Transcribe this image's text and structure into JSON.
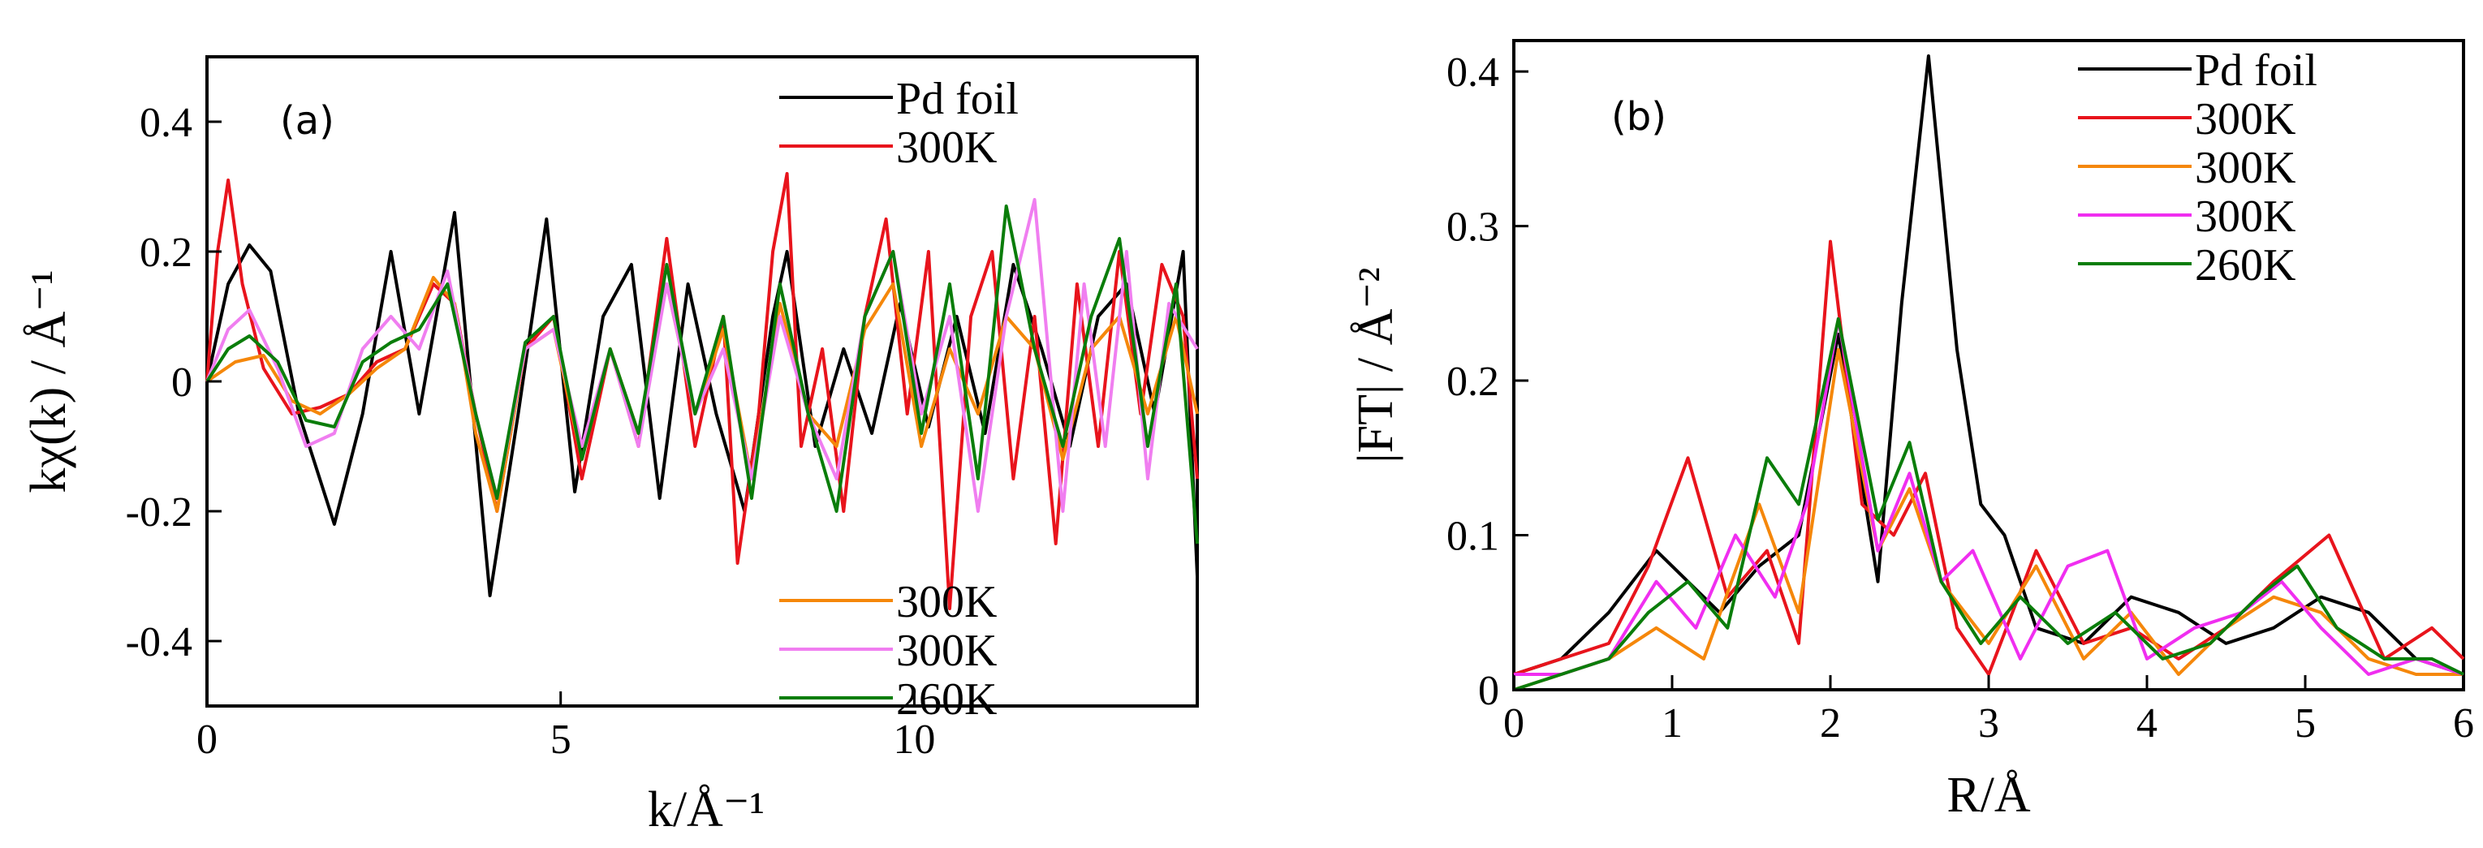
{
  "chart_data": [
    {
      "panel": "(a)",
      "type": "line",
      "xlabel": "k/Å⁻¹",
      "ylabel": "kχ(k) / Å⁻¹",
      "xlim": [
        0,
        14
      ],
      "ylim": [
        -0.5,
        0.5
      ],
      "xticks": [
        "0",
        "5",
        "10"
      ],
      "xtick_values": [
        0,
        5,
        10
      ],
      "yticks": [
        "0.4",
        "0.2",
        "0",
        "-0.2",
        "-0.4"
      ],
      "ytick_values": [
        0.4,
        0.2,
        0,
        -0.2,
        -0.4
      ],
      "legend_top": [
        "Pd foil",
        "300K"
      ],
      "legend_bottom": [
        "300K",
        "300K",
        "260K"
      ],
      "series": [
        {
          "name": "Pd foil",
          "color": "#000000",
          "x": [
            0,
            0.3,
            0.6,
            0.9,
            1.3,
            1.8,
            2.2,
            2.6,
            3.0,
            3.5,
            4.0,
            4.4,
            4.8,
            5.2,
            5.6,
            6.0,
            6.4,
            6.8,
            7.2,
            7.6,
            8.0,
            8.2,
            8.6,
            9.0,
            9.4,
            9.8,
            10.2,
            10.6,
            11.0,
            11.4,
            11.8,
            12.2,
            12.6,
            13.0,
            13.4,
            13.8,
            14.0
          ],
          "y": [
            0,
            0.15,
            0.21,
            0.17,
            -0.05,
            -0.22,
            -0.05,
            0.2,
            -0.05,
            0.26,
            -0.33,
            -0.05,
            0.25,
            -0.17,
            0.1,
            0.18,
            -0.18,
            0.15,
            -0.05,
            -0.2,
            0.1,
            0.2,
            -0.1,
            0.05,
            -0.08,
            0.12,
            -0.07,
            0.1,
            -0.08,
            0.18,
            0.05,
            -0.1,
            0.1,
            0.15,
            -0.05,
            0.2,
            -0.3
          ]
        },
        {
          "name": "300K",
          "color": "#e8141c",
          "x": [
            0,
            0.15,
            0.3,
            0.5,
            0.8,
            1.2,
            1.6,
            2.0,
            2.4,
            2.8,
            3.2,
            3.5,
            3.8,
            4.1,
            4.5,
            4.9,
            5.3,
            5.7,
            6.1,
            6.5,
            6.9,
            7.3,
            7.5,
            7.8,
            8.0,
            8.2,
            8.4,
            8.7,
            9.0,
            9.3,
            9.6,
            9.9,
            10.2,
            10.5,
            10.8,
            11.1,
            11.4,
            11.7,
            12.0,
            12.3,
            12.6,
            12.9,
            13.2,
            13.5,
            13.8,
            14.0
          ],
          "y": [
            0,
            0.2,
            0.31,
            0.15,
            0.02,
            -0.05,
            -0.04,
            -0.02,
            0.03,
            0.05,
            0.15,
            0.12,
            -0.05,
            -0.2,
            0.05,
            0.1,
            -0.15,
            0.05,
            -0.1,
            0.22,
            -0.1,
            0.1,
            -0.28,
            -0.05,
            0.2,
            0.32,
            -0.1,
            0.05,
            -0.2,
            0.1,
            0.25,
            -0.05,
            0.2,
            -0.35,
            0.1,
            0.2,
            -0.15,
            0.1,
            -0.25,
            0.15,
            -0.1,
            0.2,
            -0.05,
            0.18,
            0.1,
            -0.15
          ]
        },
        {
          "name": "300K",
          "color": "#f5870a",
          "x": [
            0,
            0.4,
            0.8,
            1.2,
            1.6,
            2.0,
            2.4,
            2.8,
            3.2,
            3.5,
            3.8,
            4.1,
            4.5,
            4.9,
            5.3,
            5.7,
            6.1,
            6.5,
            6.9,
            7.3,
            7.7,
            8.1,
            8.5,
            8.9,
            9.3,
            9.7,
            10.1,
            10.5,
            10.9,
            11.3,
            11.7,
            12.1,
            12.5,
            12.9,
            13.3,
            13.7,
            14.0
          ],
          "y": [
            0,
            0.03,
            0.04,
            -0.03,
            -0.05,
            -0.02,
            0.02,
            0.05,
            0.16,
            0.12,
            -0.08,
            -0.2,
            0.05,
            0.08,
            -0.12,
            0.05,
            -0.08,
            0.15,
            -0.05,
            0.08,
            -0.15,
            0.12,
            -0.05,
            -0.1,
            0.08,
            0.15,
            -0.1,
            0.05,
            -0.05,
            0.1,
            0.05,
            -0.12,
            0.05,
            0.1,
            -0.05,
            0.1,
            -0.05
          ]
        },
        {
          "name": "300K",
          "color": "#f07ef0",
          "x": [
            0,
            0.3,
            0.6,
            1.0,
            1.4,
            1.8,
            2.2,
            2.6,
            3.0,
            3.4,
            3.8,
            4.1,
            4.5,
            4.9,
            5.3,
            5.7,
            6.1,
            6.5,
            6.9,
            7.3,
            7.7,
            8.1,
            8.5,
            8.9,
            9.3,
            9.7,
            10.1,
            10.5,
            10.9,
            11.3,
            11.7,
            12.1,
            12.4,
            12.7,
            13.0,
            13.3,
            13.6,
            14.0
          ],
          "y": [
            0,
            0.08,
            0.11,
            0.02,
            -0.1,
            -0.08,
            0.05,
            0.1,
            0.05,
            0.17,
            -0.05,
            -0.18,
            0.05,
            0.08,
            -0.1,
            0.05,
            -0.1,
            0.15,
            -0.05,
            0.05,
            -0.15,
            0.1,
            -0.05,
            -0.15,
            0.1,
            0.2,
            -0.05,
            0.1,
            -0.2,
            0.1,
            0.28,
            -0.2,
            0.15,
            -0.1,
            0.2,
            -0.15,
            0.12,
            0.05
          ]
        },
        {
          "name": "260K",
          "color": "#0a7d0a",
          "x": [
            0,
            0.3,
            0.6,
            1.0,
            1.4,
            1.8,
            2.2,
            2.6,
            3.0,
            3.4,
            3.8,
            4.1,
            4.5,
            4.9,
            5.3,
            5.7,
            6.1,
            6.5,
            6.9,
            7.3,
            7.7,
            8.1,
            8.5,
            8.9,
            9.3,
            9.7,
            10.1,
            10.5,
            10.9,
            11.3,
            11.7,
            12.1,
            12.5,
            12.9,
            13.3,
            13.7,
            14.0
          ],
          "y": [
            0,
            0.05,
            0.07,
            0.03,
            -0.06,
            -0.07,
            0.03,
            0.06,
            0.08,
            0.15,
            -0.05,
            -0.18,
            0.06,
            0.1,
            -0.12,
            0.05,
            -0.08,
            0.18,
            -0.05,
            0.1,
            -0.18,
            0.15,
            -0.05,
            -0.2,
            0.1,
            0.2,
            -0.08,
            0.15,
            -0.15,
            0.27,
            0.05,
            -0.1,
            0.1,
            0.22,
            -0.1,
            0.15,
            -0.25
          ]
        }
      ]
    },
    {
      "panel": "(b)",
      "type": "line",
      "xlabel": "R/Å",
      "ylabel": "|FT| / Å⁻²",
      "xlim": [
        0,
        6
      ],
      "ylim": [
        0,
        0.42
      ],
      "xticks": [
        "0",
        "1",
        "2",
        "3",
        "4",
        "5",
        "6"
      ],
      "xtick_values": [
        0,
        1,
        2,
        3,
        4,
        5,
        6
      ],
      "yticks": [
        "0.4",
        "0.3",
        "0.2",
        "0.1",
        "0"
      ],
      "ytick_values": [
        0.4,
        0.3,
        0.2,
        0.1,
        0
      ],
      "legend": [
        "Pd foil",
        "300K",
        "300K",
        "300K",
        "260K"
      ],
      "series": [
        {
          "name": "Pd foil",
          "color": "#000000",
          "x": [
            0,
            0.3,
            0.6,
            0.9,
            1.1,
            1.3,
            1.55,
            1.8,
            2.05,
            2.3,
            2.45,
            2.62,
            2.8,
            2.95,
            3.1,
            3.3,
            3.6,
            3.9,
            4.2,
            4.5,
            4.8,
            5.1,
            5.4,
            5.7,
            6.0
          ],
          "y": [
            0.01,
            0.02,
            0.05,
            0.09,
            0.07,
            0.05,
            0.08,
            0.1,
            0.23,
            0.07,
            0.25,
            0.41,
            0.22,
            0.12,
            0.1,
            0.04,
            0.03,
            0.06,
            0.05,
            0.03,
            0.04,
            0.06,
            0.05,
            0.02,
            0.01
          ]
        },
        {
          "name": "300K",
          "color": "#e8141c",
          "x": [
            0,
            0.3,
            0.6,
            0.85,
            1.1,
            1.35,
            1.6,
            1.8,
            2.0,
            2.2,
            2.4,
            2.6,
            2.8,
            3.0,
            3.3,
            3.6,
            3.9,
            4.2,
            4.5,
            4.8,
            5.15,
            5.5,
            5.8,
            6.0
          ],
          "y": [
            0.01,
            0.02,
            0.03,
            0.08,
            0.15,
            0.06,
            0.09,
            0.03,
            0.29,
            0.12,
            0.1,
            0.14,
            0.04,
            0.01,
            0.09,
            0.03,
            0.04,
            0.02,
            0.04,
            0.07,
            0.1,
            0.02,
            0.04,
            0.02
          ]
        },
        {
          "name": "300K",
          "color": "#f5870a",
          "x": [
            0,
            0.3,
            0.6,
            0.9,
            1.2,
            1.55,
            1.8,
            2.05,
            2.3,
            2.5,
            2.7,
            3.0,
            3.3,
            3.6,
            3.9,
            4.2,
            4.5,
            4.8,
            5.1,
            5.4,
            5.7,
            6.0
          ],
          "y": [
            0.0,
            0.01,
            0.02,
            0.04,
            0.02,
            0.12,
            0.05,
            0.22,
            0.09,
            0.13,
            0.07,
            0.03,
            0.08,
            0.02,
            0.05,
            0.01,
            0.04,
            0.06,
            0.05,
            0.02,
            0.01,
            0.01
          ]
        },
        {
          "name": "300K",
          "color": "#f02ef0",
          "x": [
            0,
            0.3,
            0.6,
            0.9,
            1.15,
            1.4,
            1.65,
            1.85,
            2.05,
            2.3,
            2.5,
            2.7,
            2.9,
            3.2,
            3.5,
            3.75,
            4.0,
            4.3,
            4.6,
            4.85,
            5.1,
            5.4,
            5.7,
            6.0
          ],
          "y": [
            0.01,
            0.01,
            0.02,
            0.07,
            0.04,
            0.1,
            0.06,
            0.12,
            0.24,
            0.09,
            0.14,
            0.07,
            0.09,
            0.02,
            0.08,
            0.09,
            0.02,
            0.04,
            0.05,
            0.07,
            0.04,
            0.01,
            0.02,
            0.01
          ]
        },
        {
          "name": "260K",
          "color": "#0a7d0a",
          "x": [
            0,
            0.3,
            0.6,
            0.85,
            1.1,
            1.35,
            1.6,
            1.8,
            2.05,
            2.3,
            2.5,
            2.7,
            2.95,
            3.2,
            3.5,
            3.8,
            4.1,
            4.4,
            4.7,
            4.95,
            5.2,
            5.5,
            5.8,
            6.0
          ],
          "y": [
            0.0,
            0.01,
            0.02,
            0.05,
            0.07,
            0.04,
            0.15,
            0.12,
            0.24,
            0.11,
            0.16,
            0.07,
            0.03,
            0.06,
            0.03,
            0.05,
            0.02,
            0.03,
            0.06,
            0.08,
            0.04,
            0.02,
            0.02,
            0.01
          ]
        }
      ]
    }
  ]
}
